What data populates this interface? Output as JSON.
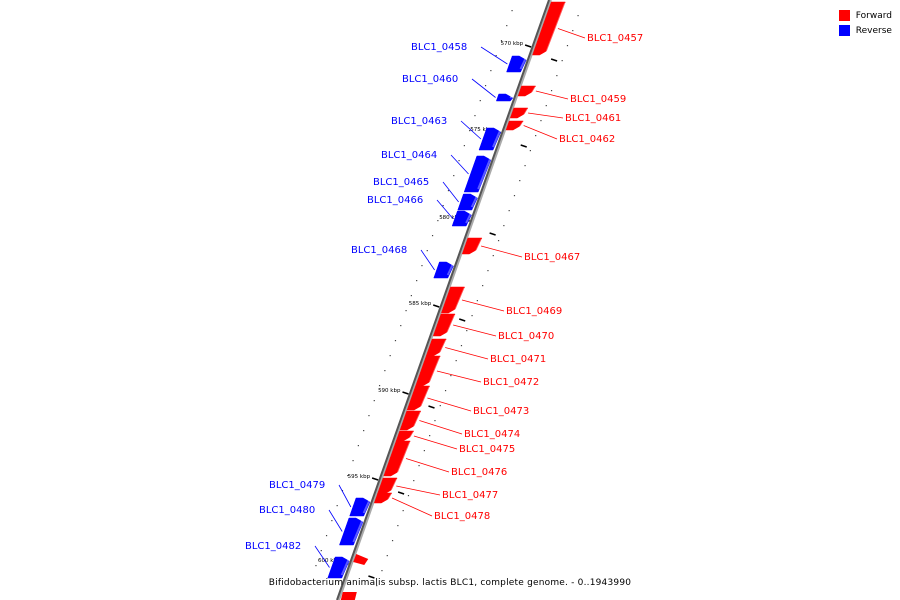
{
  "legend": {
    "forward_label": "Forward",
    "reverse_label": "Reverse",
    "forward_color": "#ff0000",
    "reverse_color": "#0000ff"
  },
  "caption": "Bifidobacterium animalis subsp. lactis BLC1, complete genome. - 0..1943990",
  "ticks": [
    "570 kbp",
    "575 kbp",
    "580 kbp",
    "585 kbp",
    "590 kbp",
    "595 kbp",
    "600 kbp"
  ],
  "genes": [
    {
      "name": "BLC1_0457",
      "strand": "forward"
    },
    {
      "name": "BLC1_0458",
      "strand": "reverse"
    },
    {
      "name": "BLC1_0459",
      "strand": "forward"
    },
    {
      "name": "BLC1_0460",
      "strand": "reverse"
    },
    {
      "name": "BLC1_0461",
      "strand": "forward"
    },
    {
      "name": "BLC1_0462",
      "strand": "forward"
    },
    {
      "name": "BLC1_0463",
      "strand": "reverse"
    },
    {
      "name": "BLC1_0464",
      "strand": "reverse"
    },
    {
      "name": "BLC1_0465",
      "strand": "reverse"
    },
    {
      "name": "BLC1_0466",
      "strand": "reverse"
    },
    {
      "name": "BLC1_0467",
      "strand": "forward"
    },
    {
      "name": "BLC1_0468",
      "strand": "reverse"
    },
    {
      "name": "BLC1_0469",
      "strand": "forward"
    },
    {
      "name": "BLC1_0470",
      "strand": "forward"
    },
    {
      "name": "BLC1_0471",
      "strand": "forward"
    },
    {
      "name": "BLC1_0472",
      "strand": "forward"
    },
    {
      "name": "BLC1_0473",
      "strand": "forward"
    },
    {
      "name": "BLC1_0474",
      "strand": "forward"
    },
    {
      "name": "BLC1_0475",
      "strand": "forward"
    },
    {
      "name": "BLC1_0476",
      "strand": "forward"
    },
    {
      "name": "BLC1_0477",
      "strand": "forward"
    },
    {
      "name": "BLC1_0478",
      "strand": "forward"
    },
    {
      "name": "BLC1_0479",
      "strand": "reverse"
    },
    {
      "name": "BLC1_0480",
      "strand": "reverse"
    },
    {
      "name": "BLC1_0482",
      "strand": "reverse"
    }
  ]
}
